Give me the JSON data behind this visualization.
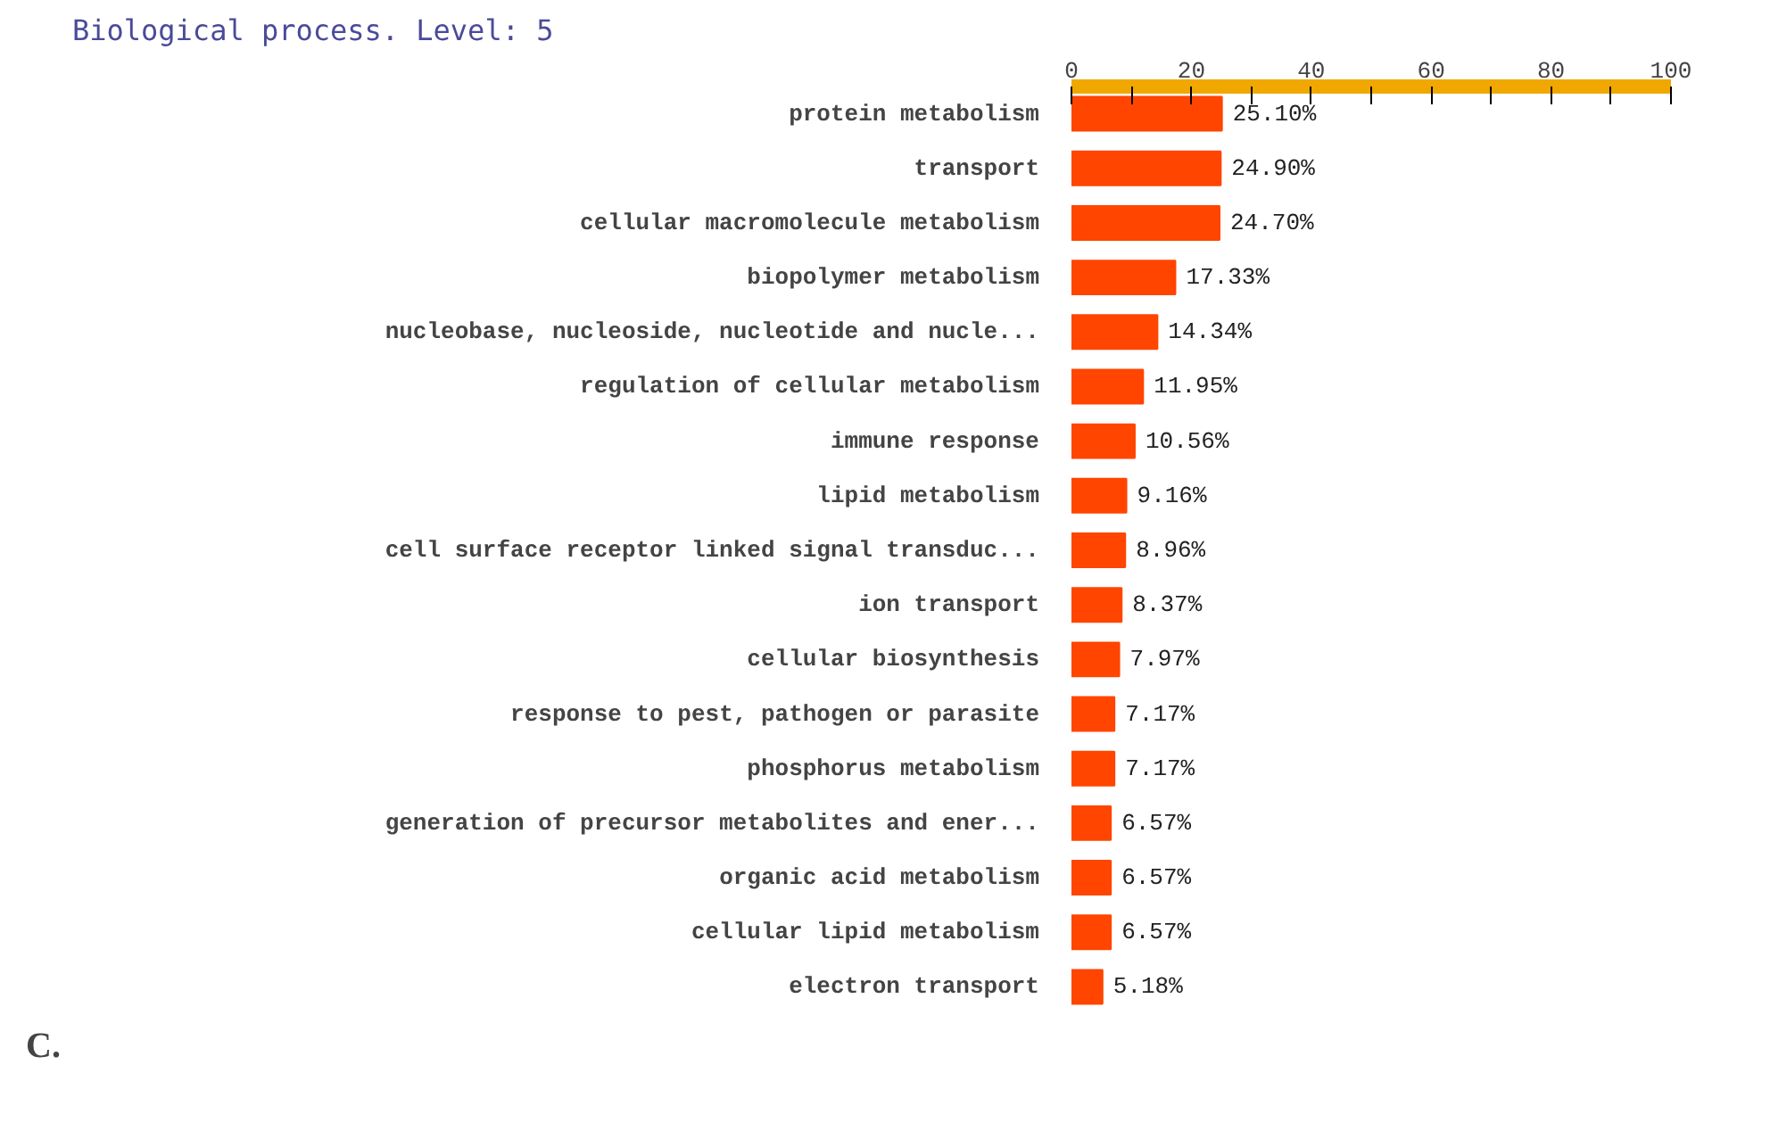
{
  "chart_data": {
    "type": "bar",
    "orientation": "horizontal",
    "title": "Biological process. Level: 5",
    "categories": [
      "protein metabolism",
      "transport",
      "cellular macromolecule metabolism",
      "biopolymer metabolism",
      "nucleobase, nucleoside, nucleotide and nucle...",
      "regulation of cellular metabolism",
      "immune response",
      "lipid metabolism",
      "cell surface receptor linked signal transduc...",
      "ion transport",
      "cellular biosynthesis",
      "response to pest, pathogen or parasite",
      "phosphorus metabolism",
      "generation of precursor metabolites and ener...",
      "organic acid metabolism",
      "cellular lipid metabolism",
      "electron transport"
    ],
    "values": [
      25.1,
      24.9,
      24.7,
      17.33,
      14.34,
      11.95,
      10.56,
      9.16,
      8.96,
      8.37,
      7.97,
      7.17,
      7.17,
      6.57,
      6.57,
      6.57,
      5.18
    ],
    "value_labels": [
      "25.10%",
      "24.90%",
      "24.70%",
      "17.33%",
      "14.34%",
      "11.95%",
      "10.56%",
      "9.16%",
      "8.96%",
      "8.37%",
      "7.97%",
      "7.17%",
      "7.17%",
      "6.57%",
      "6.57%",
      "6.57%",
      "5.18%"
    ],
    "color": "#ff4500",
    "xlim": [
      0,
      100
    ],
    "xticks": [
      0,
      {
        "value": 10,
        "label": null
      },
      20,
      {
        "value": 30,
        "label": null
      },
      40,
      {
        "value": 50,
        "label": null
      },
      60,
      {
        "value": 70,
        "label": null
      },
      80,
      {
        "value": 90,
        "label": null
      },
      100
    ],
    "annotations": [
      "C."
    ]
  }
}
